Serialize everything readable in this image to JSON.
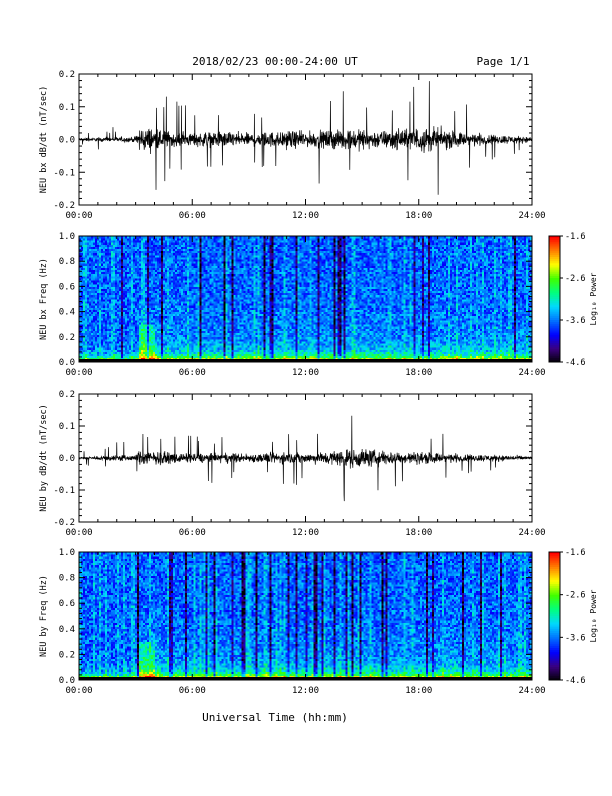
{
  "header": {
    "title": "2018/02/23  00:00-24:00 UT",
    "page": "Page 1/1"
  },
  "footer": {
    "xlabel": "Universal Time (hh:mm)"
  },
  "colorbar": {
    "label": "Log₁₀ Power",
    "ticks": [
      "-1.6",
      "-2.6",
      "-3.6",
      "-4.6"
    ],
    "colors": [
      "#000000",
      "#3a0080",
      "#0000ff",
      "#0070ff",
      "#00d8ff",
      "#00ff80",
      "#40ff00",
      "#ffff00",
      "#ff8000",
      "#ff0000"
    ]
  },
  "chart_data": [
    {
      "type": "line",
      "ylabel": "NEU bx dB/dt (nT/sec)",
      "xlim": [
        0,
        24
      ],
      "ylim": [
        -0.2,
        0.2
      ],
      "x_ticks": [
        "00:00",
        "06:00",
        "12:00",
        "18:00",
        "24:00"
      ],
      "y_ticks": [
        "0.2",
        "0.1",
        "0.0",
        "-0.1",
        "-0.2"
      ],
      "envelope": {
        "x_hours": [
          0,
          1,
          2,
          3,
          3.2,
          4,
          5,
          6,
          7,
          8,
          9,
          10,
          11,
          12,
          13,
          14,
          15,
          16,
          17,
          18,
          19,
          20,
          21,
          22,
          23,
          24
        ],
        "amplitude": [
          0.012,
          0.015,
          0.02,
          0.02,
          0.1,
          0.09,
          0.06,
          0.05,
          0.06,
          0.06,
          0.05,
          0.06,
          0.07,
          0.06,
          0.07,
          0.08,
          0.08,
          0.07,
          0.08,
          0.1,
          0.09,
          0.06,
          0.05,
          0.04,
          0.03,
          0.02
        ]
      }
    },
    {
      "type": "heatmap",
      "ylabel": "NEU bx Freq (Hz)",
      "xlim": [
        0,
        24
      ],
      "ylim": [
        0.0,
        1.0
      ],
      "zlim": [
        -4.6,
        -1.6
      ],
      "x_ticks": [
        "00:00",
        "06:00",
        "12:00",
        "18:00",
        "24:00"
      ],
      "y_ticks": [
        "1.0",
        "0.8",
        "0.6",
        "0.4",
        "0.2",
        "0.0"
      ]
    },
    {
      "type": "line",
      "ylabel": "NEU by dB/dt (nT/sec)",
      "xlim": [
        0,
        24
      ],
      "ylim": [
        -0.2,
        0.2
      ],
      "x_ticks": [
        "00:00",
        "06:00",
        "12:00",
        "18:00",
        "24:00"
      ],
      "y_ticks": [
        "0.2",
        "0.1",
        "0.0",
        "-0.1",
        "-0.2"
      ],
      "envelope": {
        "x_hours": [
          0,
          1,
          2,
          3,
          3.2,
          4,
          5,
          6,
          7,
          8,
          9,
          10,
          11,
          12,
          13,
          14,
          15,
          16,
          17,
          18,
          19,
          20,
          21,
          22,
          23,
          24
        ],
        "amplitude": [
          0.01,
          0.015,
          0.03,
          0.02,
          0.06,
          0.05,
          0.04,
          0.035,
          0.04,
          0.04,
          0.035,
          0.04,
          0.045,
          0.04,
          0.05,
          0.07,
          0.08,
          0.06,
          0.05,
          0.05,
          0.04,
          0.035,
          0.03,
          0.025,
          0.02,
          0.015
        ]
      }
    },
    {
      "type": "heatmap",
      "ylabel": "NEU by Freq (Hz)",
      "xlim": [
        0,
        24
      ],
      "ylim": [
        0.0,
        1.0
      ],
      "zlim": [
        -4.6,
        -1.6
      ],
      "x_ticks": [
        "00:00",
        "06:00",
        "12:00",
        "18:00",
        "24:00"
      ],
      "y_ticks": [
        "1.0",
        "0.8",
        "0.6",
        "0.4",
        "0.2",
        "0.0"
      ]
    }
  ]
}
